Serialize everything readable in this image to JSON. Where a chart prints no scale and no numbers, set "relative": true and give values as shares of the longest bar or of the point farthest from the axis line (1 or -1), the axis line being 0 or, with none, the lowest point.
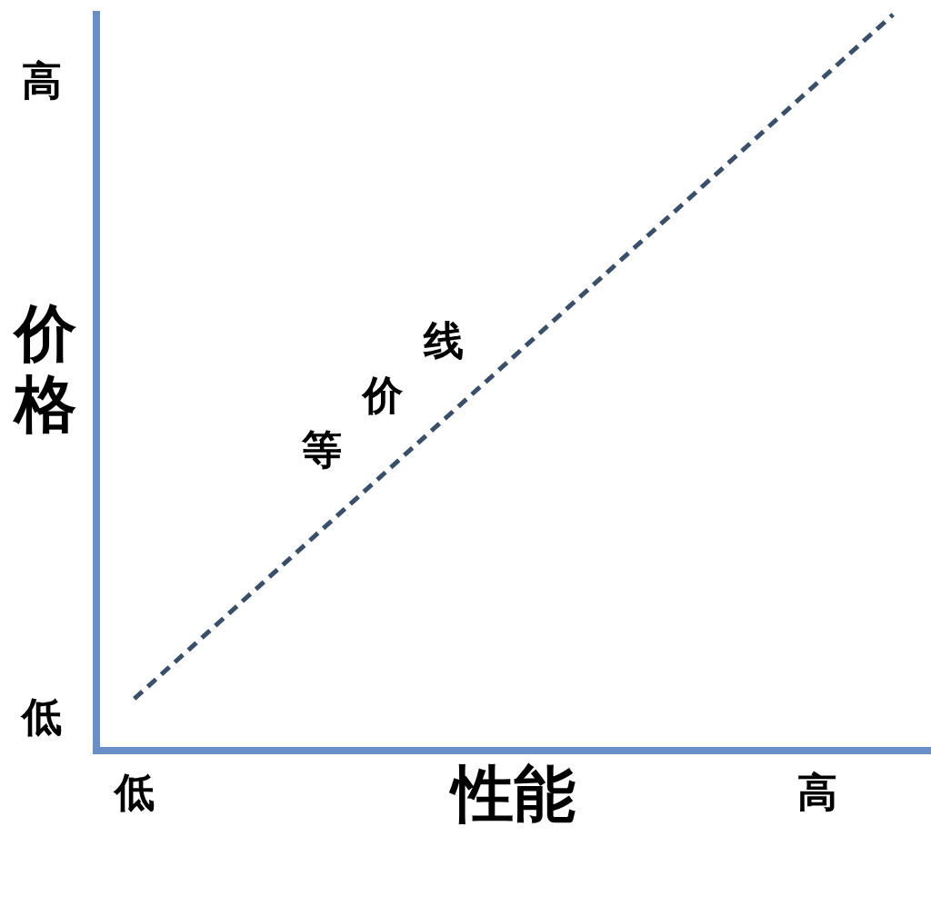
{
  "chart_data": {
    "type": "line",
    "relative": true,
    "xlabel": "性能",
    "ylabel": "价格",
    "categories": [
      "低",
      null,
      null,
      null,
      null,
      null,
      null,
      null,
      null,
      "高",
      null
    ],
    "series": [
      {
        "name": "等价线",
        "color": "#3a4f6a",
        "values": [
          0.07,
          null,
          null,
          null,
          null,
          null,
          null,
          null,
          null,
          null,
          1
        ]
      }
    ],
    "line_style": "dashed",
    "marker": "none",
    "grid": false,
    "legend": false,
    "annotations": [
      "高",
      "低"
    ]
  }
}
